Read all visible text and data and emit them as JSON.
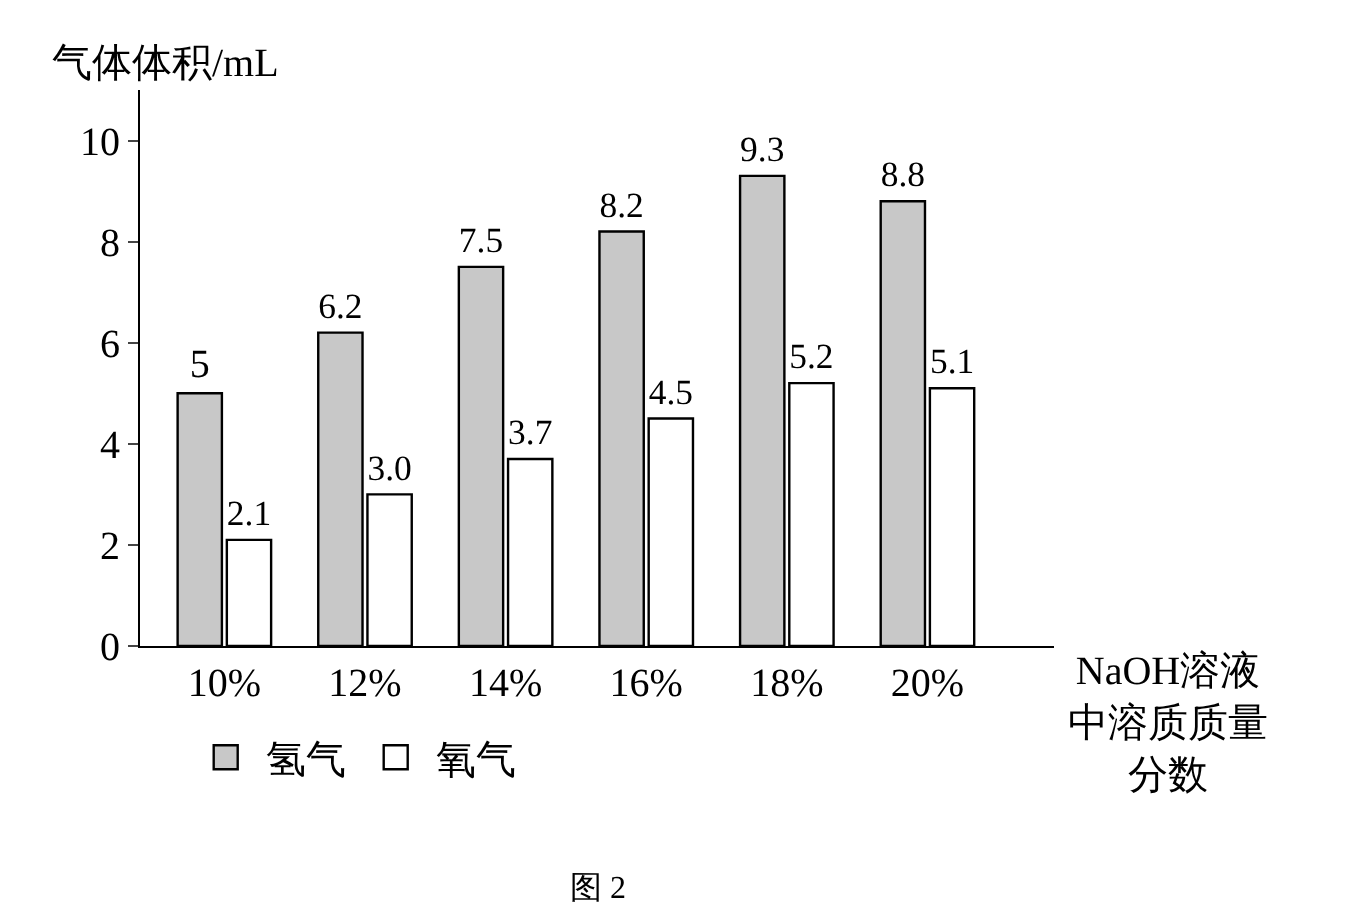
{
  "chart_data": {
    "type": "bar",
    "ylabel": "气体体积/mL",
    "xlabel": "NaOH溶液中溶质质量分数",
    "categories": [
      "10%",
      "12%",
      "14%",
      "16%",
      "18%",
      "20%"
    ],
    "series": [
      {
        "name": "氢气",
        "color": "#c8c8c8",
        "values": [
          5,
          6.2,
          7.5,
          8.2,
          9.3,
          8.8
        ],
        "value_labels": [
          "5",
          "6.2",
          "7.5",
          "8.2",
          "9.3",
          "8.8"
        ]
      },
      {
        "name": "氧气",
        "color": "#ffffff",
        "values": [
          2.1,
          3.0,
          3.7,
          4.5,
          5.2,
          5.1
        ],
        "value_labels": [
          "2.1",
          "3.0",
          "3.7",
          "4.5",
          "5.2",
          "5.1"
        ]
      }
    ],
    "ylim": [
      0,
      11
    ],
    "yticks": [
      0,
      2,
      4,
      6,
      8,
      10
    ],
    "legend": "bottom",
    "annotations": [
      "图 2"
    ]
  }
}
